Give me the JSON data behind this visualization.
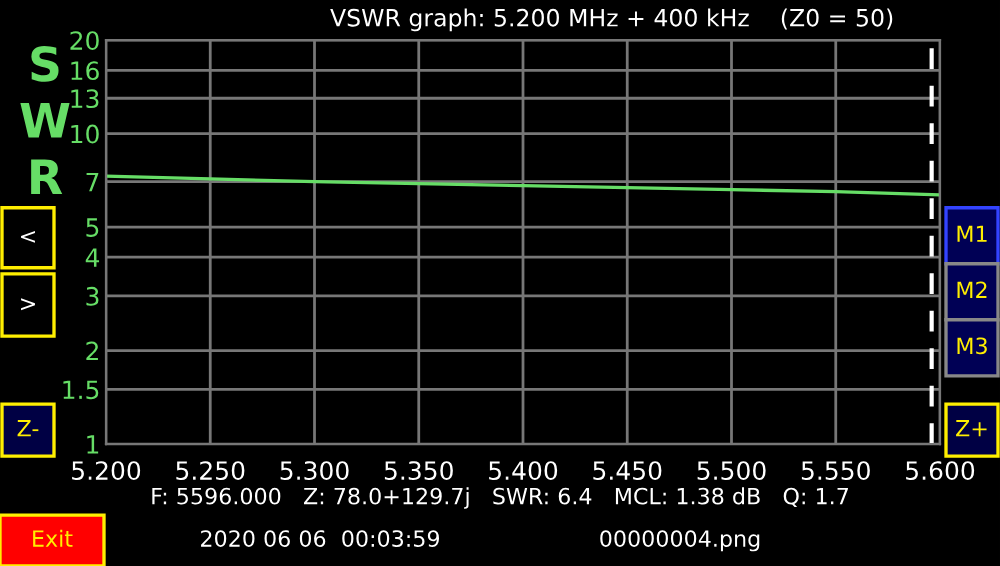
{
  "chart_data": {
    "type": "line",
    "title": "VSWR graph: 5.200 MHz + 400 kHz    (Z0 = 50)",
    "ylabel": "SWR",
    "x": [
      5.2,
      5.25,
      5.3,
      5.35,
      5.4,
      5.45,
      5.5,
      5.55,
      5.6
    ],
    "series": [
      {
        "color": "#66dd66",
        "values": [
          7.3,
          7.15,
          7.0,
          6.9,
          6.8,
          6.7,
          6.6,
          6.5,
          6.35
        ]
      }
    ],
    "log": true,
    "xlim": [
      5.2,
      5.6
    ],
    "ylim": [
      1,
      20
    ],
    "xticks": [
      {
        "value": 5.2,
        "label": "5.200"
      },
      {
        "value": 5.25,
        "label": "5.250"
      },
      {
        "value": 5.3,
        "label": "5.300"
      },
      {
        "value": 5.35,
        "label": "5.350"
      },
      {
        "value": 5.4,
        "label": "5.400"
      },
      {
        "value": 5.45,
        "label": "5.450"
      },
      {
        "value": 5.5,
        "label": "5.500"
      },
      {
        "value": 5.55,
        "label": "5.550"
      },
      {
        "value": 5.6,
        "label": "5.600"
      }
    ],
    "yticks": [
      1,
      1.5,
      2,
      3,
      4,
      5,
      7,
      10,
      13,
      16,
      20
    ],
    "grid": true,
    "legend": false,
    "marker": "none",
    "line_style": "solid",
    "ref_lines": [
      {
        "axis": "x",
        "value": 5.596,
        "color": "#ffffff",
        "line_style": "dashed"
      }
    ],
    "annotations": [
      "F: 5596.000   Z: 78.0+129.7j   SWR: 6.4   MCL: 1.38 dB   Q: 1.7",
      "2020 06 06  00:03:59",
      "00000004.png",
      "<",
      ">",
      "Z-",
      "M1",
      "M2",
      "M3",
      "Z+",
      "Exit"
    ]
  }
}
